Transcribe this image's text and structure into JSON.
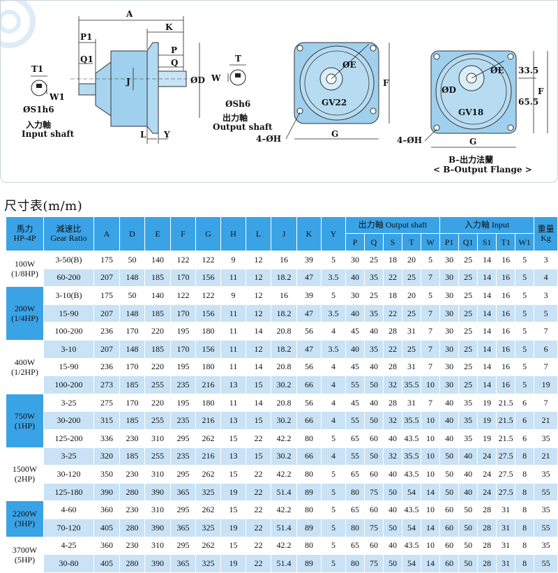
{
  "diagram": {
    "labels": {
      "A": "A",
      "K": "K",
      "P1": "P1",
      "Q1": "Q1",
      "P": "P",
      "Q": "Q",
      "J": "J",
      "D": "ØD",
      "L": "L",
      "Y": "Y",
      "T1": "T1",
      "W1": "W1",
      "S1h6": "ØS1h6",
      "input_cn": "入力軸",
      "input_en": "Input shaft",
      "T": "T",
      "W": "W",
      "Sh6": "ØSh6",
      "output_cn": "出力軸",
      "output_en": "Output shaft",
      "E": "ØE",
      "F": "F",
      "G": "G",
      "H": "4–ØH",
      "GV22": "GV22",
      "GV18": "GV18",
      "dim_335": "33.5",
      "dim_655": "65.5",
      "flange_cn": "B–出力法蘭",
      "flange_en": "< B–Output Flange >"
    }
  },
  "section_title": "尺寸表(m/m)",
  "table": {
    "headers": {
      "hp": "馬力",
      "hp2": "HP-4P",
      "ratio": "減速比",
      "ratio2": "Gear Ratio",
      "A": "A",
      "D": "D",
      "E": "E",
      "F": "F",
      "G": "G",
      "H": "H",
      "L": "L",
      "J": "J",
      "K": "K",
      "Y": "Y",
      "output": "出力軸 Output shaft",
      "input": "入力軸 Input",
      "weight": "重量",
      "weight2": "Kg",
      "P": "P",
      "Q": "Q",
      "S": "S",
      "T": "T",
      "W": "W",
      "P1": "P1",
      "Q1": "Q1",
      "S1": "S1",
      "T1": "T1",
      "W1": "W1"
    },
    "groups": [
      {
        "hp": "100W",
        "hp2": "(1/8HP)",
        "rows": [
          [
            "3-50(B)",
            "175",
            "50",
            "140",
            "122",
            "122",
            "9",
            "12",
            "16",
            "39",
            "5",
            "30",
            "25",
            "18",
            "20",
            "5",
            "30",
            "25",
            "14",
            "16",
            "5",
            "3"
          ],
          [
            "60-200",
            "207",
            "148",
            "185",
            "170",
            "156",
            "11",
            "12",
            "18.2",
            "47",
            "3.5",
            "40",
            "35",
            "22",
            "25",
            "7",
            "30",
            "25",
            "14",
            "16",
            "5",
            "4"
          ]
        ]
      },
      {
        "hp": "200W",
        "hp2": "(1/4HP)",
        "rows": [
          [
            "3-10(B)",
            "175",
            "50",
            "140",
            "122",
            "122",
            "9",
            "12",
            "16",
            "39",
            "5",
            "30",
            "25",
            "18",
            "20",
            "5",
            "30",
            "25",
            "14",
            "16",
            "5",
            "3"
          ],
          [
            "15-90",
            "207",
            "148",
            "185",
            "170",
            "156",
            "11",
            "12",
            "18.2",
            "47",
            "3.5",
            "40",
            "35",
            "22",
            "25",
            "7",
            "30",
            "25",
            "14",
            "16",
            "5",
            "5"
          ],
          [
            "100-200",
            "236",
            "170",
            "220",
            "195",
            "180",
            "11",
            "14",
            "20.8",
            "56",
            "4",
            "45",
            "40",
            "28",
            "31",
            "7",
            "30",
            "25",
            "14",
            "16",
            "5",
            "7"
          ]
        ]
      },
      {
        "hp": "400W",
        "hp2": "(1/2HP)",
        "rows": [
          [
            "3-10",
            "207",
            "148",
            "185",
            "170",
            "156",
            "11",
            "12",
            "18.2",
            "47",
            "3.5",
            "40",
            "35",
            "22",
            "25",
            "7",
            "30",
            "25",
            "14",
            "16",
            "5",
            "6"
          ],
          [
            "15-90",
            "236",
            "170",
            "220",
            "195",
            "180",
            "11",
            "14",
            "20.8",
            "56",
            "4",
            "45",
            "40",
            "28",
            "31",
            "7",
            "30",
            "25",
            "14",
            "16",
            "5",
            "7"
          ],
          [
            "100-200",
            "273",
            "185",
            "255",
            "235",
            "216",
            "13",
            "15",
            "30.2",
            "66",
            "4",
            "55",
            "50",
            "32",
            "35.5",
            "10",
            "30",
            "25",
            "14",
            "16",
            "5",
            "19"
          ]
        ]
      },
      {
        "hp": "750W",
        "hp2": "(1HP)",
        "rows": [
          [
            "3-25",
            "275",
            "170",
            "220",
            "195",
            "180",
            "11",
            "14",
            "20.8",
            "56",
            "4",
            "45",
            "40",
            "28",
            "31",
            "7",
            "40",
            "35",
            "19",
            "21.5",
            "6",
            "7"
          ],
          [
            "30-200",
            "315",
            "185",
            "255",
            "235",
            "216",
            "13",
            "15",
            "30.2",
            "66",
            "4",
            "55",
            "50",
            "32",
            "35.5",
            "10",
            "40",
            "35",
            "19",
            "21.5",
            "6",
            "21"
          ],
          [
            "125-200",
            "336",
            "230",
            "310",
            "295",
            "262",
            "15",
            "22",
            "42.2",
            "80",
            "5",
            "65",
            "60",
            "40",
            "43.5",
            "10",
            "40",
            "35",
            "19",
            "21.5",
            "6",
            "35"
          ]
        ]
      },
      {
        "hp": "1500W",
        "hp2": "(2HP)",
        "rows": [
          [
            "3-25",
            "320",
            "185",
            "255",
            "235",
            "216",
            "13",
            "15",
            "30.2",
            "66",
            "4",
            "55",
            "50",
            "32",
            "35.5",
            "10",
            "50",
            "40",
            "24",
            "27.5",
            "8",
            "21"
          ],
          [
            "30-120",
            "350",
            "230",
            "310",
            "295",
            "262",
            "15",
            "22",
            "42.2",
            "80",
            "5",
            "65",
            "60",
            "40",
            "43.5",
            "10",
            "50",
            "40",
            "24",
            "27.5",
            "8",
            "35"
          ],
          [
            "125-180",
            "390",
            "280",
            "390",
            "365",
            "325",
            "19",
            "22",
            "51.4",
            "89",
            "5",
            "80",
            "75",
            "50",
            "54",
            "14",
            "50",
            "40",
            "24",
            "27.5",
            "8",
            "55"
          ]
        ]
      },
      {
        "hp": "2200W",
        "hp2": "(3HP)",
        "rows": [
          [
            "4-60",
            "360",
            "230",
            "310",
            "295",
            "262",
            "15",
            "22",
            "42.2",
            "80",
            "5",
            "65",
            "60",
            "40",
            "43.5",
            "10",
            "60",
            "50",
            "28",
            "31",
            "8",
            "35"
          ],
          [
            "70-120",
            "405",
            "280",
            "390",
            "365",
            "325",
            "19",
            "22",
            "51.4",
            "89",
            "5",
            "80",
            "75",
            "50",
            "54",
            "14",
            "60",
            "50",
            "28",
            "31",
            "8",
            "55"
          ]
        ]
      },
      {
        "hp": "3700W",
        "hp2": "(5HP)",
        "rows": [
          [
            "4-25",
            "360",
            "230",
            "310",
            "295",
            "262",
            "15",
            "22",
            "42.2",
            "80",
            "5",
            "65",
            "60",
            "40",
            "43.5",
            "10",
            "60",
            "50",
            "28",
            "31",
            "8",
            "35"
          ],
          [
            "30-80",
            "405",
            "280",
            "390",
            "365",
            "325",
            "19",
            "22",
            "51.4",
            "89",
            "5",
            "80",
            "75",
            "50",
            "54",
            "14",
            "60",
            "50",
            "28",
            "31",
            "8",
            "55"
          ]
        ]
      }
    ]
  }
}
